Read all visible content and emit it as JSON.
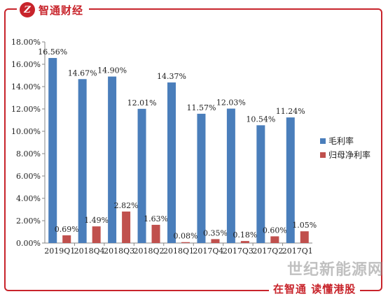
{
  "brand": {
    "logo_glyph": "Z",
    "name": "智通财经",
    "color": "#c8242b"
  },
  "watermark": "世纪新能源网",
  "slogan": "在智通 读懂港股",
  "chart_data": {
    "type": "bar",
    "categories": [
      "2019Q1",
      "2018Q4",
      "2018Q3",
      "2018Q2",
      "2018Q1",
      "2017Q4",
      "2017Q3",
      "2017Q2",
      "2017Q1"
    ],
    "series": [
      {
        "name": "毛利率",
        "values": [
          16.56,
          14.67,
          14.9,
          12.01,
          14.37,
          11.57,
          12.03,
          10.54,
          11.24
        ],
        "labels": [
          "16.56%",
          "14.67%",
          "14.90%",
          "12.01%",
          "14.37%",
          "11.57%",
          "12.03%",
          "10.54%",
          "11.24%"
        ],
        "color": "#4a7ebb"
      },
      {
        "name": "归母净利率",
        "values": [
          0.69,
          1.49,
          2.82,
          1.63,
          0.08,
          0.35,
          0.18,
          0.6,
          1.05
        ],
        "labels": [
          "0.69%",
          "1.49%",
          "2.82%",
          "1.63%",
          "0.08%",
          "0.35%",
          "0.18%",
          "0.60%",
          "1.05%"
        ],
        "color": "#c0504d"
      }
    ],
    "ylim": [
      0,
      18
    ],
    "yticks": [
      "0.00%",
      "2.00%",
      "4.00%",
      "6.00%",
      "8.00%",
      "10.00%",
      "12.00%",
      "14.00%",
      "16.00%",
      "18.00%"
    ],
    "legend_position": "right",
    "grid": false
  }
}
